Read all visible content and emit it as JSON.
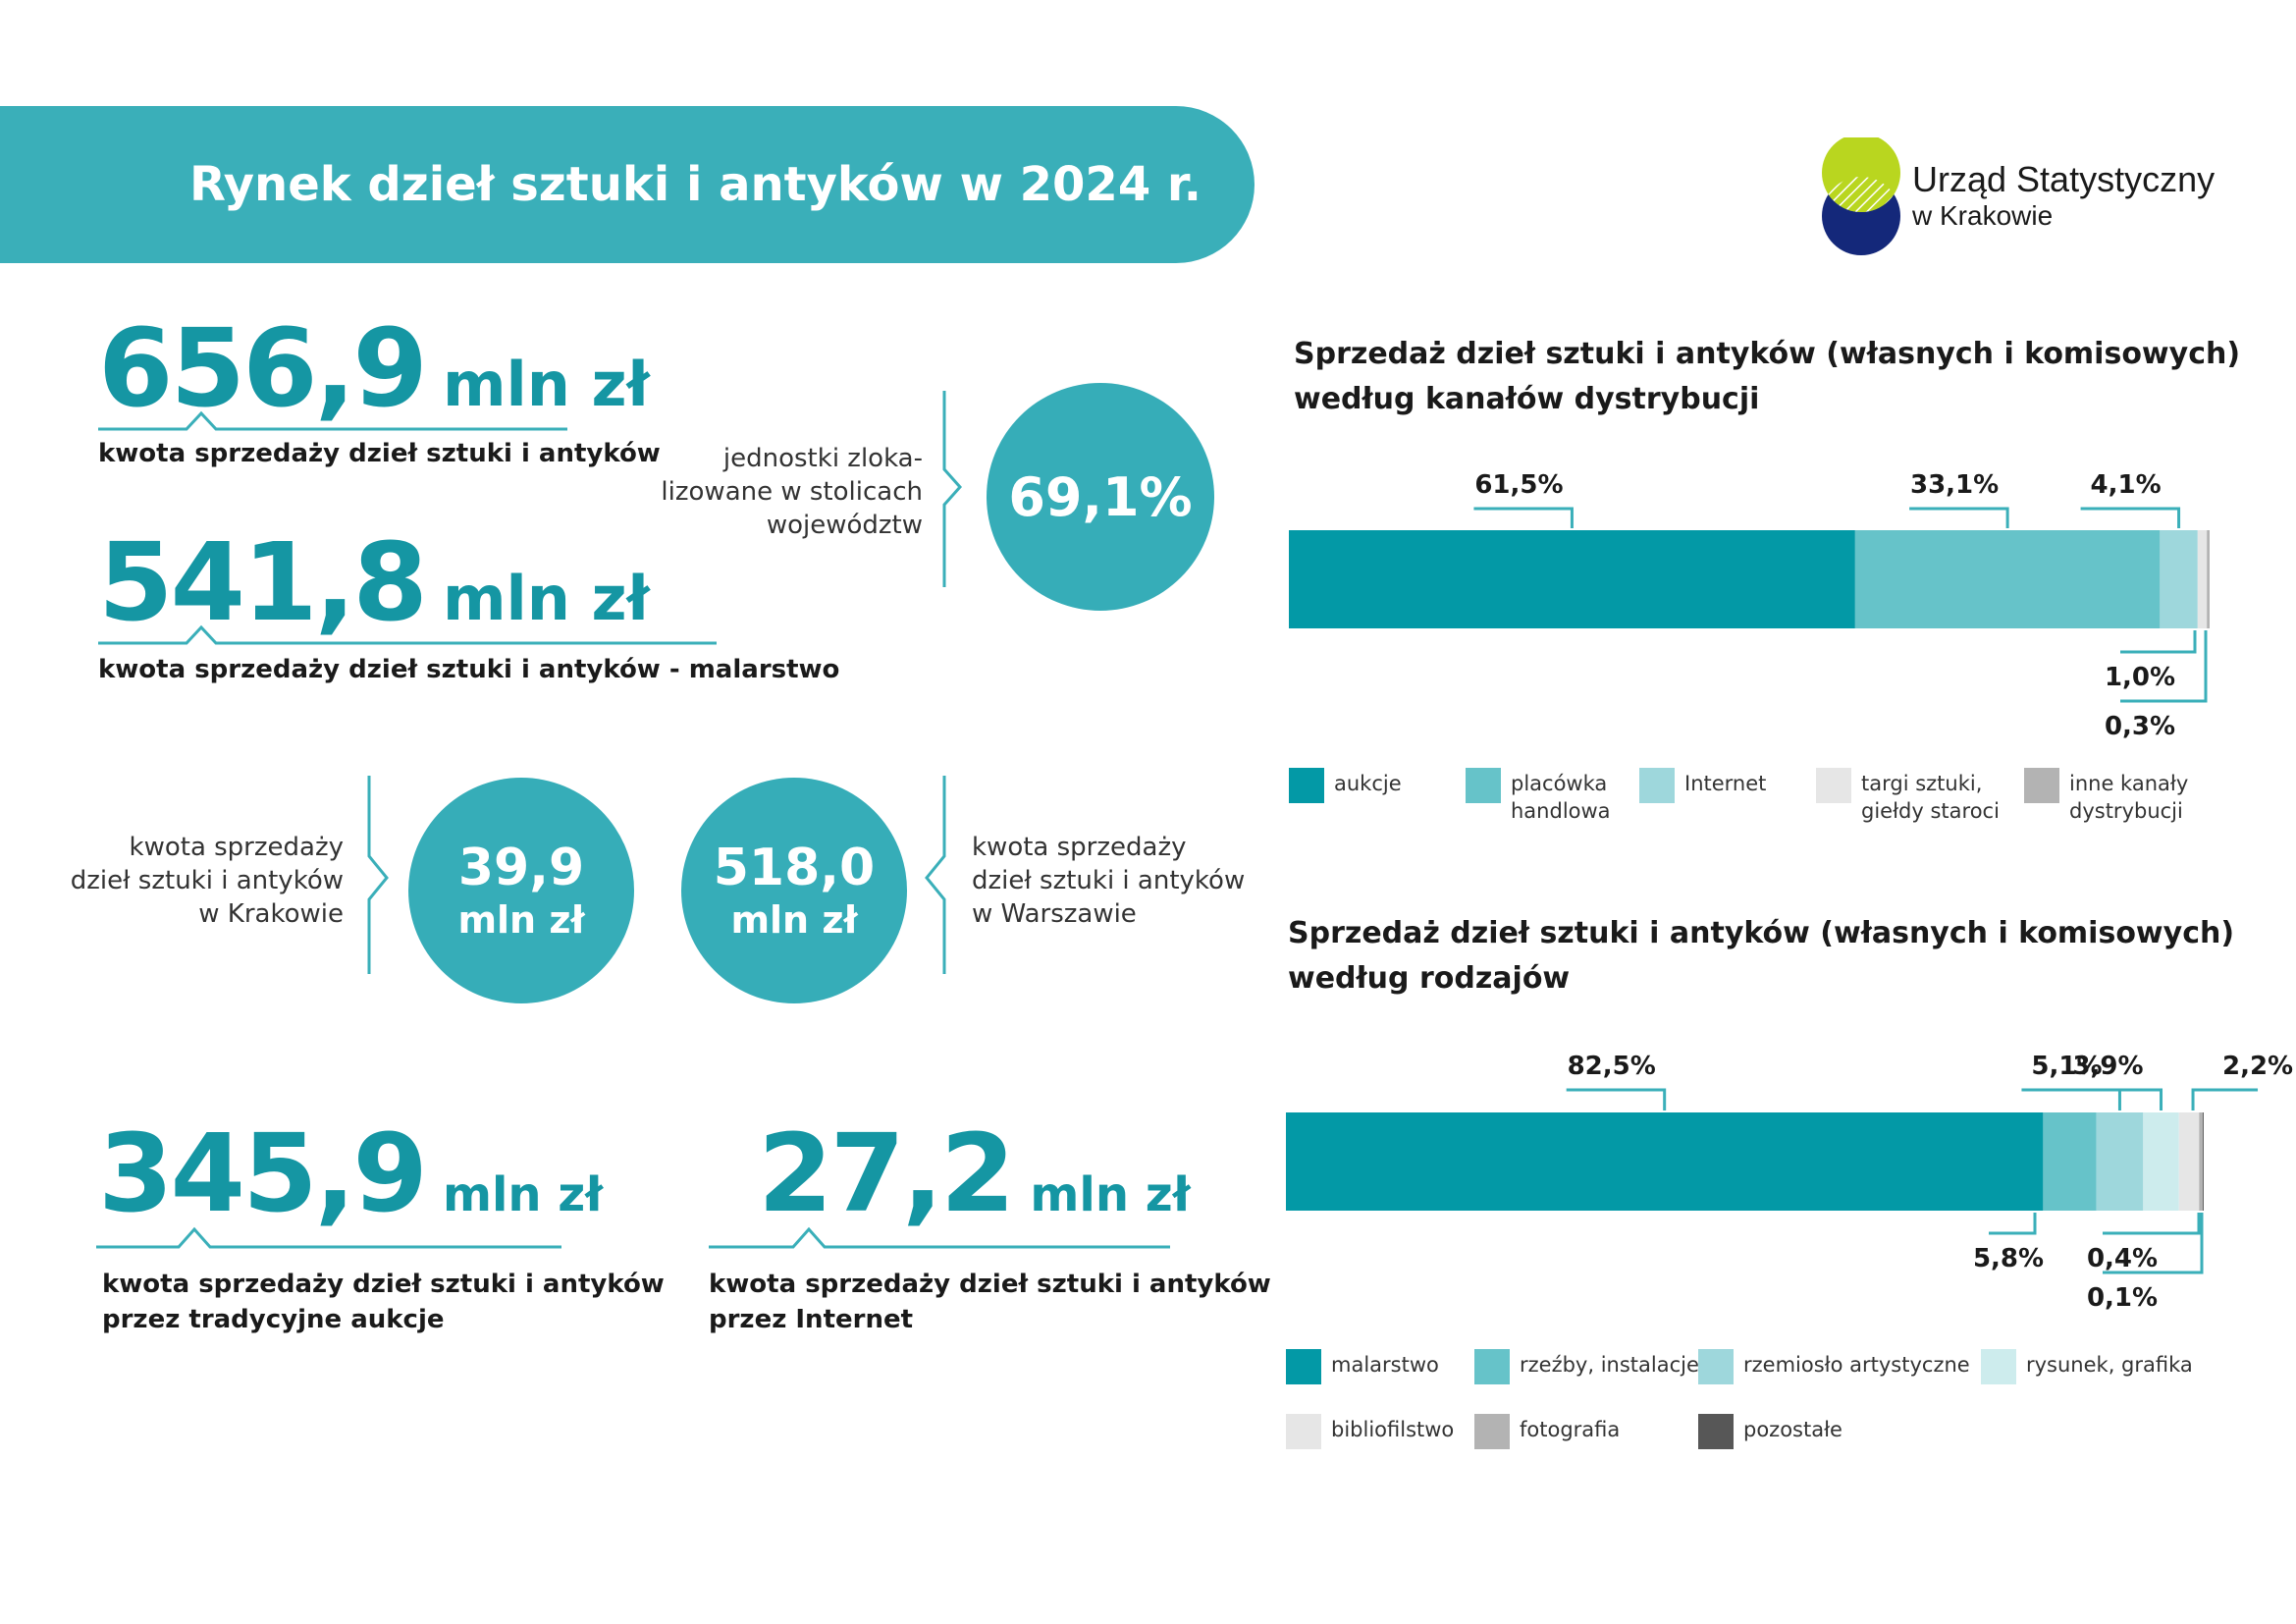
{
  "header": {
    "title": "Rynek dzieł sztuki i antyków w 2024 r.",
    "logo_line1": "Urząd Statystyczny",
    "logo_line2": "w Krakowie"
  },
  "kpis": {
    "total": {
      "value": "656,9",
      "unit": "mln zł",
      "caption": "kwota sprzedaży dzieł sztuki i antyków"
    },
    "painting": {
      "value": "541,8",
      "unit": "mln zł",
      "caption": "kwota sprzedaży dzieł sztuki i antyków - malarstwo"
    },
    "capitals": {
      "text": "jednostki zloka-\nlizowane w stolicach\nwojewództw",
      "value": "69,1%"
    },
    "krakow": {
      "text": "kwota sprzedaży\ndzieł sztuki i antyków\nw Krakowie",
      "value": "39,9",
      "unit": "mln zł"
    },
    "warszawa": {
      "text": "kwota sprzedaży\ndzieł sztuki i antyków\nw Warszawie",
      "value": "518,0",
      "unit": "mln zł"
    },
    "auctions": {
      "value": "345,9",
      "unit": "mln zł",
      "caption": "kwota sprzedaży dzieł sztuki i antyków\nprzez tradycyjne aukcje"
    },
    "internet": {
      "value": "27,2",
      "unit": "mln zł",
      "caption": "kwota sprzedaży dzieł sztuki i antyków\nprzez Internet"
    }
  },
  "colors": {
    "teal_dark": "#0399a6",
    "teal_mid": "#66c3c9",
    "teal_light": "#9ed7dc",
    "teal_pale": "#cdeced",
    "grey_light": "#e6e6e6",
    "grey_mid": "#b3b3b3",
    "grey_dark": "#575757",
    "accent": "#3aafb9"
  },
  "chart_data": [
    {
      "type": "bar",
      "orientation": "horizontal-stacked-100",
      "title": "Sprzedaż dzieł sztuki i antyków (własnych i komisowych)\n według kanałów dystrybucji",
      "series": [
        {
          "name": "aukcje",
          "value": 61.5,
          "label": "61,5%",
          "color": "#0399a6"
        },
        {
          "name": "placówka handlowa",
          "value": 33.1,
          "label": "33,1%",
          "color": "#66c3c9"
        },
        {
          "name": "Internet",
          "value": 4.1,
          "label": "4,1%",
          "color": "#9ed7dc"
        },
        {
          "name": "targi sztuki, giełdy staroci",
          "value": 1.0,
          "label": "1,0%",
          "color": "#e6e6e6"
        },
        {
          "name": "inne kanały dystrybucji",
          "value": 0.3,
          "label": "0,3%",
          "color": "#b3b3b3"
        }
      ],
      "legend": [
        {
          "label": "aukcje",
          "color": "#0399a6"
        },
        {
          "label": "placówka\nhandlowa",
          "color": "#66c3c9"
        },
        {
          "label": "Internet",
          "color": "#9ed7dc"
        },
        {
          "label": "targi sztuki,\ngiełdy staroci",
          "color": "#e6e6e6"
        },
        {
          "label": "inne kanały\ndystrybucji",
          "color": "#b3b3b3"
        }
      ]
    },
    {
      "type": "bar",
      "orientation": "horizontal-stacked-100",
      "title": "Sprzedaż dzieł sztuki i antyków (własnych i komisowych)\nwedług rodzajów",
      "series": [
        {
          "name": "malarstwo",
          "value": 82.5,
          "label": "82,5%",
          "color": "#0399a6"
        },
        {
          "name": "rzeźby, instalacje",
          "value": 5.8,
          "label": "5,8%",
          "color": "#66c3c9"
        },
        {
          "name": "rzemiosło artystyczne",
          "value": 5.1,
          "label": "5,1%",
          "color": "#9ed7dc"
        },
        {
          "name": "rysunek, grafika",
          "value": 3.9,
          "label": "3,9%",
          "color": "#cdeced"
        },
        {
          "name": "bibliofilstwo",
          "value": 2.2,
          "label": "2,2%",
          "color": "#e6e6e6"
        },
        {
          "name": "fotografia",
          "value": 0.4,
          "label": "0,4%",
          "color": "#b3b3b3"
        },
        {
          "name": "pozostałe",
          "value": 0.1,
          "label": "0,1%",
          "color": "#575757"
        }
      ],
      "legend": [
        {
          "label": "malarstwo",
          "color": "#0399a6"
        },
        {
          "label": "rzeźby, instalacje",
          "color": "#66c3c9"
        },
        {
          "label": "rzemiosło artystyczne",
          "color": "#9ed7dc"
        },
        {
          "label": "rysunek, grafika",
          "color": "#cdeced"
        },
        {
          "label": "bibliofilstwo",
          "color": "#e6e6e6"
        },
        {
          "label": "fotografia",
          "color": "#b3b3b3"
        },
        {
          "label": "pozostałe",
          "color": "#575757"
        }
      ]
    }
  ]
}
